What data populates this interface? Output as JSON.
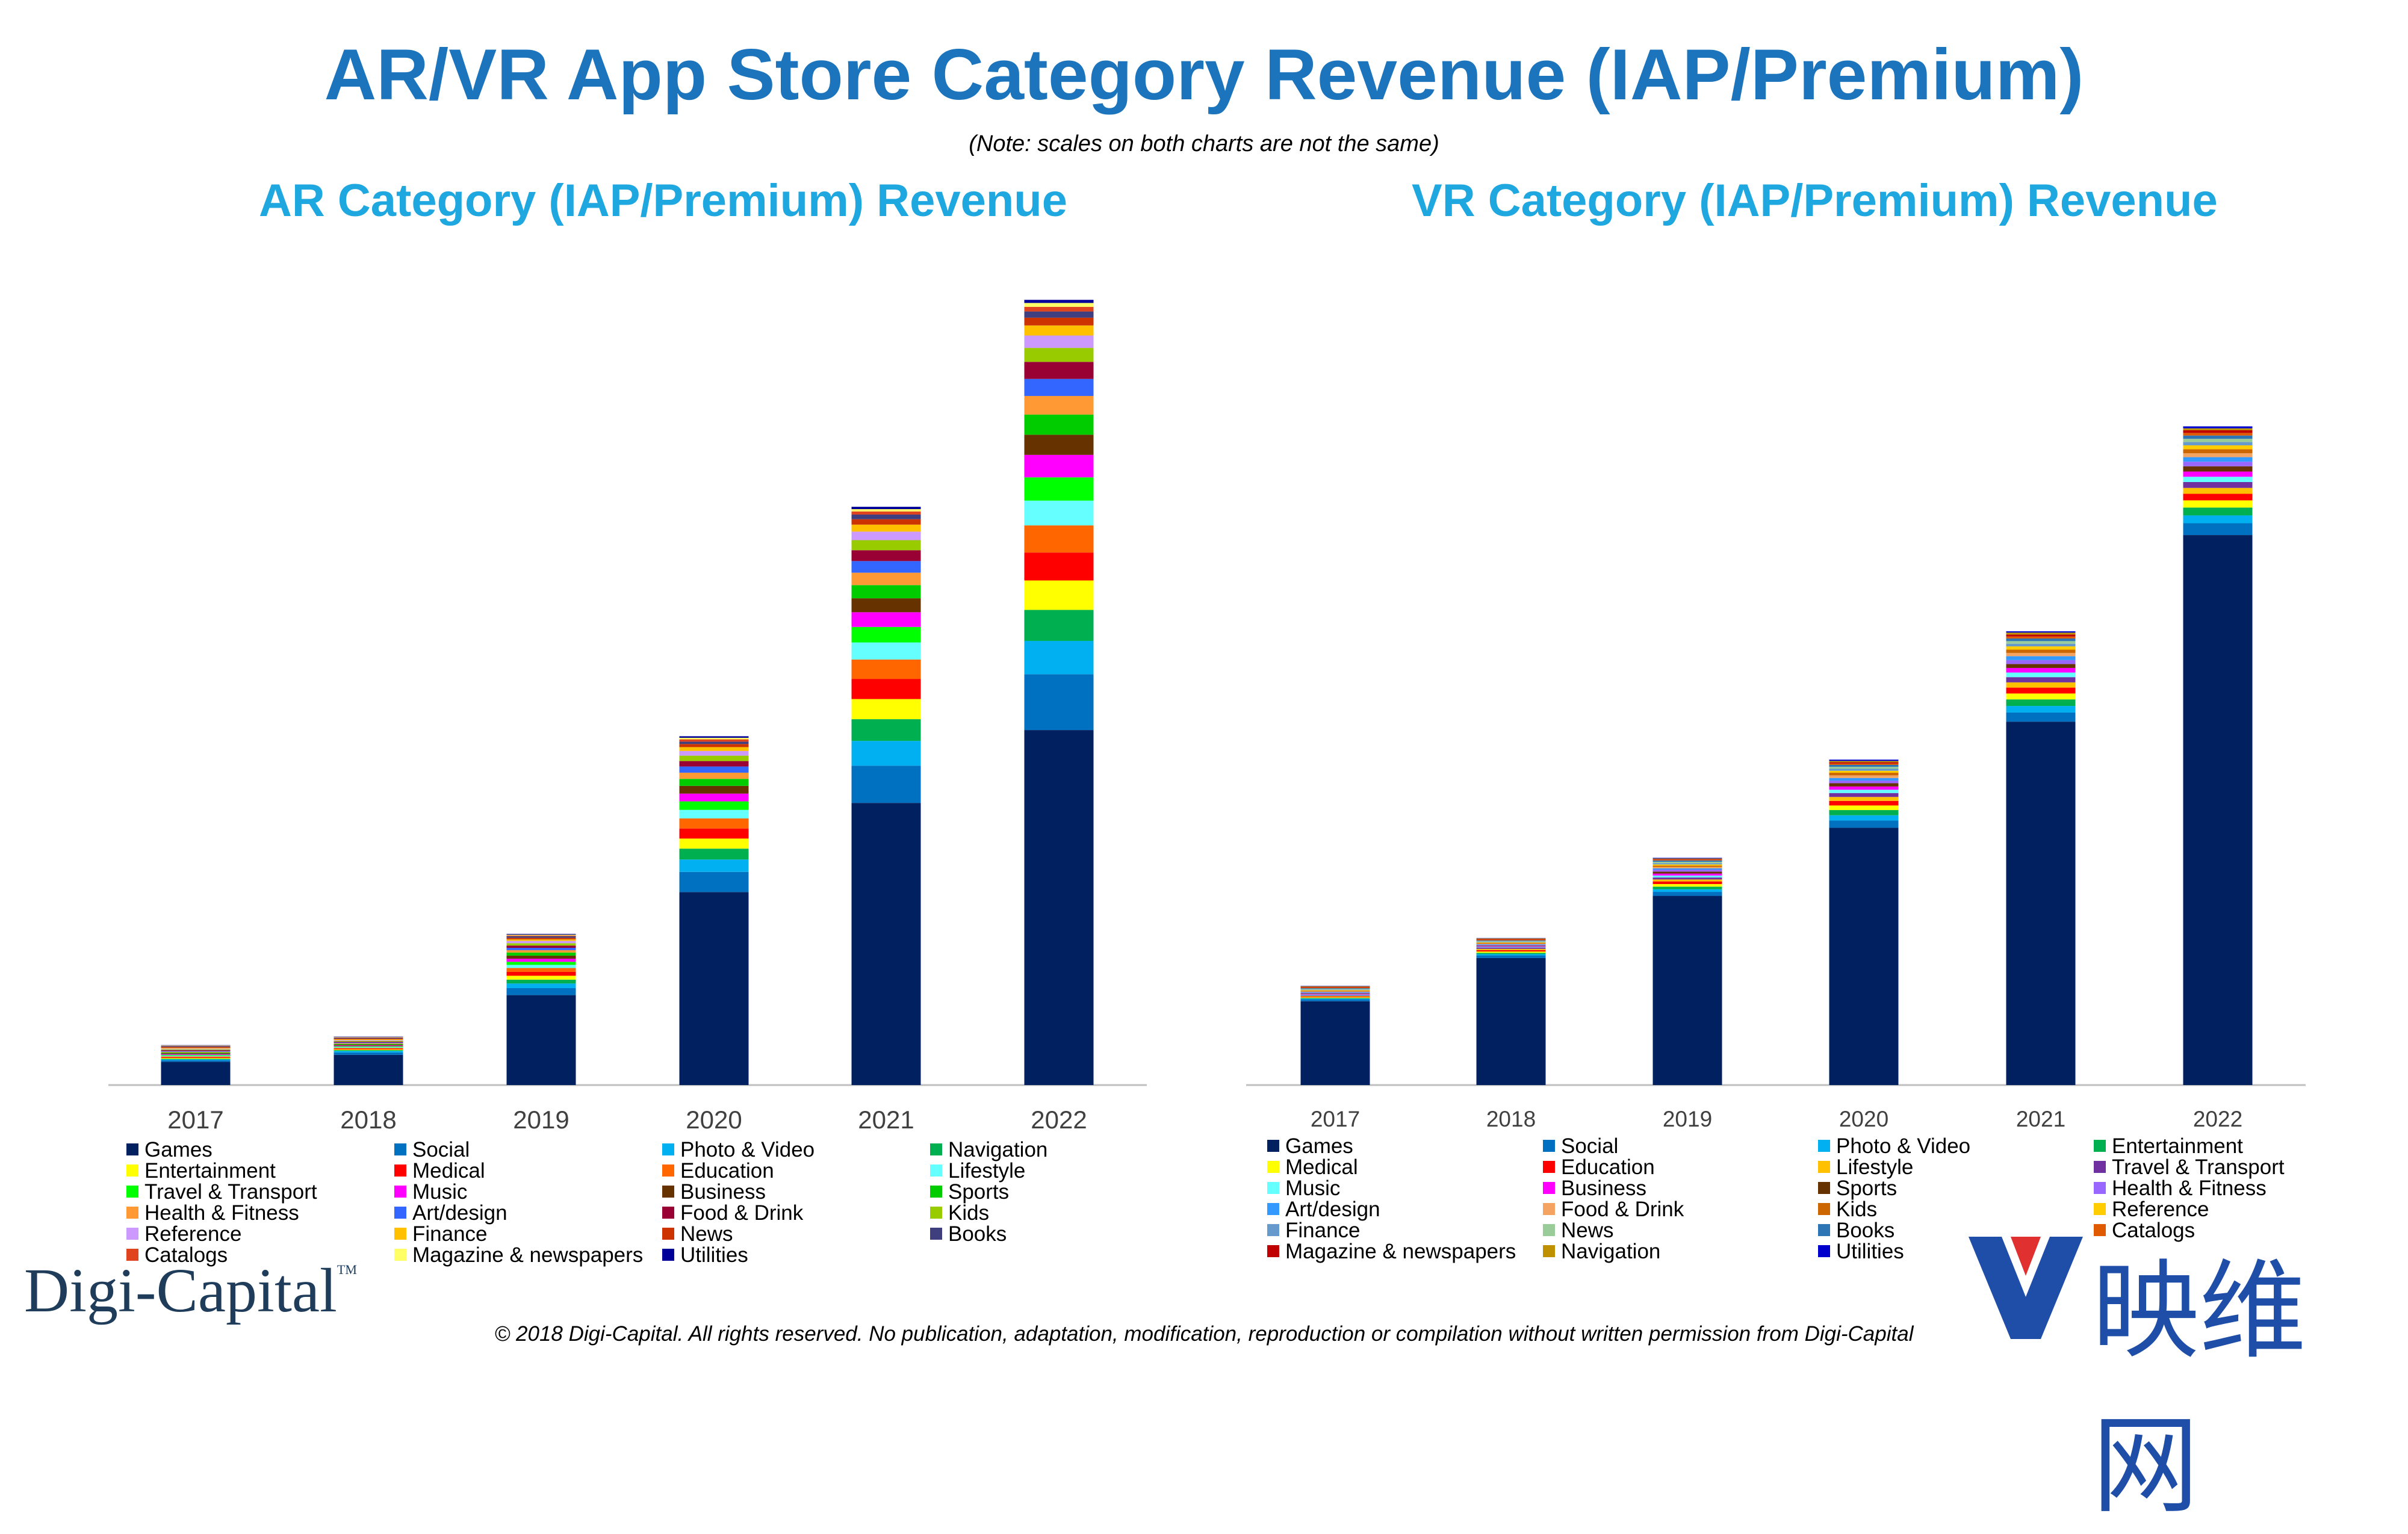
{
  "header": {
    "title": "AR/VR App Store Category Revenue (IAP/Premium)",
    "note": "(Note: scales on both charts are not the same)"
  },
  "footer": {
    "logo": "Digi-Capital",
    "logo_tm": "TM",
    "copyright": "© 2018 Digi-Capital. All rights reserved. No publication, adaptation, modification, reproduction or compilation without written permission from Digi-Capital",
    "watermark": "映维网"
  },
  "chart_data": [
    {
      "type": "bar",
      "stacked": true,
      "title": "AR Category (IAP/Premium) Revenue",
      "categories": [
        "2017",
        "2018",
        "2019",
        "2020",
        "2021",
        "2022"
      ],
      "ylim": [
        0,
        100
      ],
      "grid": false,
      "legend_position": "bottom",
      "series": [
        {
          "name": "Games",
          "color": "#002060",
          "values": [
            3.0,
            3.9,
            11.6,
            24.9,
            36.4,
            45.8
          ]
        },
        {
          "name": "Social",
          "color": "#0070c0",
          "values": [
            0.2,
            0.3,
            0.9,
            2.6,
            4.8,
            7.2
          ]
        },
        {
          "name": "Photo & Video",
          "color": "#00b0f0",
          "values": [
            0.1,
            0.2,
            0.6,
            1.6,
            3.2,
            4.3
          ]
        },
        {
          "name": "Navigation",
          "color": "#00b050",
          "values": [
            0.1,
            0.1,
            0.5,
            1.4,
            2.8,
            4.0
          ]
        },
        {
          "name": "Entertainment",
          "color": "#ffff00",
          "values": [
            0.1,
            0.1,
            0.5,
            1.3,
            2.6,
            3.8
          ]
        },
        {
          "name": "Medical",
          "color": "#ff0000",
          "values": [
            0.1,
            0.1,
            0.5,
            1.3,
            2.6,
            3.6
          ]
        },
        {
          "name": "Education",
          "color": "#ff6600",
          "values": [
            0.1,
            0.1,
            0.5,
            1.3,
            2.5,
            3.5
          ]
        },
        {
          "name": "Lifestyle",
          "color": "#66ffff",
          "values": [
            0.1,
            0.1,
            0.4,
            1.1,
            2.2,
            3.2
          ]
        },
        {
          "name": "Travel & Transport",
          "color": "#00ff00",
          "values": [
            0.1,
            0.1,
            0.4,
            1.1,
            2.0,
            3.0
          ]
        },
        {
          "name": "Music",
          "color": "#ff00ff",
          "values": [
            0.1,
            0.1,
            0.4,
            1.0,
            1.9,
            2.9
          ]
        },
        {
          "name": "Business",
          "color": "#663300",
          "values": [
            0.1,
            0.1,
            0.4,
            1.0,
            1.8,
            2.6
          ]
        },
        {
          "name": "Sports",
          "color": "#00cc00",
          "values": [
            0.1,
            0.1,
            0.4,
            0.9,
            1.7,
            2.6
          ]
        },
        {
          "name": "Health & Fitness",
          "color": "#ff9933",
          "values": [
            0.1,
            0.1,
            0.3,
            0.8,
            1.6,
            2.4
          ]
        },
        {
          "name": "Art/design",
          "color": "#3366ff",
          "values": [
            0.1,
            0.1,
            0.3,
            0.8,
            1.5,
            2.2
          ]
        },
        {
          "name": "Food & Drink",
          "color": "#990033",
          "values": [
            0.1,
            0.1,
            0.3,
            0.7,
            1.4,
            2.2
          ]
        },
        {
          "name": "Kids",
          "color": "#99cc00",
          "values": [
            0.1,
            0.1,
            0.3,
            0.7,
            1.3,
            1.8
          ]
        },
        {
          "name": "Reference",
          "color": "#cc99ff",
          "values": [
            0.1,
            0.1,
            0.3,
            0.6,
            1.1,
            1.6
          ]
        },
        {
          "name": "Finance",
          "color": "#ffc000",
          "values": [
            0.1,
            0.1,
            0.2,
            0.5,
            0.9,
            1.3
          ]
        },
        {
          "name": "News",
          "color": "#cc3300",
          "values": [
            0.1,
            0.1,
            0.2,
            0.4,
            0.7,
            1.0
          ]
        },
        {
          "name": "Books",
          "color": "#3f3f7f",
          "values": [
            0.1,
            0.1,
            0.2,
            0.3,
            0.6,
            0.8
          ]
        },
        {
          "name": "Catalogs",
          "color": "#e0441f",
          "values": [
            0.05,
            0.05,
            0.1,
            0.3,
            0.4,
            0.6
          ]
        },
        {
          "name": "Magazine & newspapers",
          "color": "#ffff66",
          "values": [
            0.05,
            0.05,
            0.1,
            0.2,
            0.3,
            0.5
          ]
        },
        {
          "name": "Utilities",
          "color": "#000099",
          "values": [
            0.05,
            0.05,
            0.1,
            0.2,
            0.3,
            0.4
          ]
        }
      ]
    },
    {
      "type": "bar",
      "stacked": true,
      "title": "VR Category (IAP/Premium) Revenue",
      "categories": [
        "2017",
        "2018",
        "2019",
        "2020",
        "2021",
        "2022"
      ],
      "ylim": [
        0,
        100
      ],
      "grid": false,
      "legend_position": "bottom",
      "series": [
        {
          "name": "Games",
          "color": "#002060",
          "values": [
            12.8,
            19.4,
            28.9,
            39.3,
            55.5,
            84.0
          ]
        },
        {
          "name": "Social",
          "color": "#0070c0",
          "values": [
            0.3,
            0.4,
            0.6,
            1.1,
            1.4,
            1.8
          ]
        },
        {
          "name": "Photo & Video",
          "color": "#00b0f0",
          "values": [
            0.1,
            0.2,
            0.4,
            0.8,
            1.0,
            1.2
          ]
        },
        {
          "name": "Entertainment",
          "color": "#00b050",
          "values": [
            0.1,
            0.2,
            0.4,
            0.8,
            1.0,
            1.2
          ]
        },
        {
          "name": "Medical",
          "color": "#ffff00",
          "values": [
            0.1,
            0.2,
            0.4,
            0.7,
            0.9,
            1.1
          ]
        },
        {
          "name": "Education",
          "color": "#ff0000",
          "values": [
            0.1,
            0.2,
            0.4,
            0.7,
            0.9,
            1.0
          ]
        },
        {
          "name": "Lifestyle",
          "color": "#ffc000",
          "values": [
            0.1,
            0.2,
            0.3,
            0.6,
            0.8,
            0.9
          ]
        },
        {
          "name": "Travel & Transport",
          "color": "#7030a0",
          "values": [
            0.1,
            0.2,
            0.3,
            0.6,
            0.8,
            0.9
          ]
        },
        {
          "name": "Music",
          "color": "#66ffff",
          "values": [
            0.1,
            0.1,
            0.3,
            0.5,
            0.7,
            0.8
          ]
        },
        {
          "name": "Business",
          "color": "#ff00ff",
          "values": [
            0.1,
            0.1,
            0.3,
            0.5,
            0.7,
            0.8
          ]
        },
        {
          "name": "Sports",
          "color": "#663300",
          "values": [
            0.1,
            0.1,
            0.3,
            0.5,
            0.6,
            0.8
          ]
        },
        {
          "name": "Health & Fitness",
          "color": "#9966ff",
          "values": [
            0.1,
            0.1,
            0.3,
            0.4,
            0.6,
            0.7
          ]
        },
        {
          "name": "Art/design",
          "color": "#3399ff",
          "values": [
            0.1,
            0.1,
            0.2,
            0.4,
            0.6,
            0.7
          ]
        },
        {
          "name": "Food & Drink",
          "color": "#f4a460",
          "values": [
            0.1,
            0.1,
            0.2,
            0.4,
            0.5,
            0.6
          ]
        },
        {
          "name": "Kids",
          "color": "#cc6600",
          "values": [
            0.1,
            0.1,
            0.2,
            0.4,
            0.5,
            0.6
          ]
        },
        {
          "name": "Reference",
          "color": "#ffcc00",
          "values": [
            0.1,
            0.1,
            0.2,
            0.3,
            0.5,
            0.6
          ]
        },
        {
          "name": "Finance",
          "color": "#6699cc",
          "values": [
            0.1,
            0.1,
            0.2,
            0.3,
            0.4,
            0.5
          ]
        },
        {
          "name": "News",
          "color": "#99cc99",
          "values": [
            0.1,
            0.1,
            0.2,
            0.3,
            0.4,
            0.5
          ]
        },
        {
          "name": "Books",
          "color": "#2e75b6",
          "values": [
            0.1,
            0.1,
            0.2,
            0.3,
            0.4,
            0.5
          ]
        },
        {
          "name": "Catalogs",
          "color": "#e05a00",
          "values": [
            0.1,
            0.1,
            0.1,
            0.2,
            0.3,
            0.4
          ]
        },
        {
          "name": "Magazine & newspapers",
          "color": "#c00000",
          "values": [
            0.1,
            0.1,
            0.1,
            0.2,
            0.3,
            0.4
          ]
        },
        {
          "name": "Navigation",
          "color": "#bf9000",
          "values": [
            0.1,
            0.1,
            0.1,
            0.2,
            0.3,
            0.3
          ]
        },
        {
          "name": "Utilities",
          "color": "#0000cc",
          "values": [
            0.05,
            0.05,
            0.1,
            0.2,
            0.2,
            0.3
          ]
        }
      ]
    }
  ]
}
